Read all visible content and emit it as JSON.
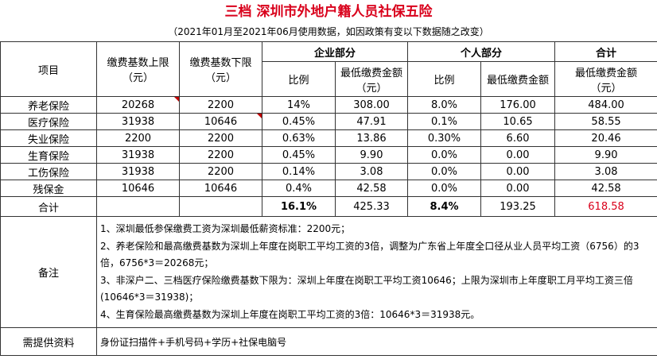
{
  "title": "三档 深圳市外地户籍人员社保五险",
  "subtitle": "（2021年01月至2021年06月使用数据，如因政策有变以下数据随之改变）",
  "headers": {
    "item": "项目",
    "upper": [
      "缴费基数上限",
      "（元）"
    ],
    "lower": [
      "缴费基数下限",
      "（元）"
    ],
    "company": "企业部分",
    "personal": "个人部分",
    "total": "合计",
    "ratio": "比例",
    "min_amount": [
      "最低缴费金额",
      "（元）"
    ]
  },
  "rows": [
    {
      "name": "养老保险",
      "upper": "20268",
      "lower": "2200",
      "c_ratio": "14%",
      "c_amount": "308.00",
      "p_ratio": "8.0%",
      "p_amount": "176.00",
      "total": "484.00"
    },
    {
      "name": "医疗保险",
      "upper": "31938",
      "lower": "10646",
      "c_ratio": "0.45%",
      "c_amount": "47.91",
      "p_ratio": "0.1%",
      "p_amount": "10.65",
      "total": "58.55"
    },
    {
      "name": "失业保险",
      "upper": "2200",
      "lower": "2200",
      "c_ratio": "0.63%",
      "c_amount": "13.86",
      "p_ratio": "0.30%",
      "p_amount": "6.60",
      "total": "20.46"
    },
    {
      "name": "生育保险",
      "upper": "31938",
      "lower": "2200",
      "c_ratio": "0.45%",
      "c_amount": "9.90",
      "p_ratio": "0.0%",
      "p_amount": "0.00",
      "total": "9.90"
    },
    {
      "name": "工伤保险",
      "upper": "31938",
      "lower": "2200",
      "c_ratio": "0.14%",
      "c_amount": "3.08",
      "p_ratio": "0.0%",
      "p_amount": "0.00",
      "total": "3.08"
    },
    {
      "name": "残保金",
      "upper": "10646",
      "lower": "10646",
      "c_ratio": "0.4%",
      "c_amount": "42.58",
      "p_ratio": "0.0%",
      "p_amount": "0.00",
      "total": "42.58"
    }
  ],
  "sum_row": {
    "name": "合计",
    "c_ratio": "16.1%",
    "c_amount": "425.33",
    "p_ratio": "8.4%",
    "p_amount": "193.25",
    "total": "618.58"
  },
  "notes_label": "备注",
  "notes": [
    "1、深圳最低参保缴费工资为深圳最低薪资标准：2200元；",
    "2、养老保险和最高缴费基数为深圳上年度在岗职工平均工资的3倍，调整为广东省上年度全口径从业人员平均工资（6756）的3倍，6756*3＝20268元；",
    "3、非深户二、三档医疗保险缴费基数下限为：深圳上年度在岗职工平均工资10646；上限为深圳市上年度职工月平均工资三倍(10646*3＝31938)；",
    "4、生育保险最高缴费基数为深圳上年度在岗职工平均工资的3倍：10646*3＝31938元。"
  ],
  "docs_label": "需提供资料",
  "docs": "身份证扫描件+手机号码+学历+社保电脑号",
  "colors": {
    "title_red": "#d9001b",
    "comment_marker": "#c00000"
  }
}
